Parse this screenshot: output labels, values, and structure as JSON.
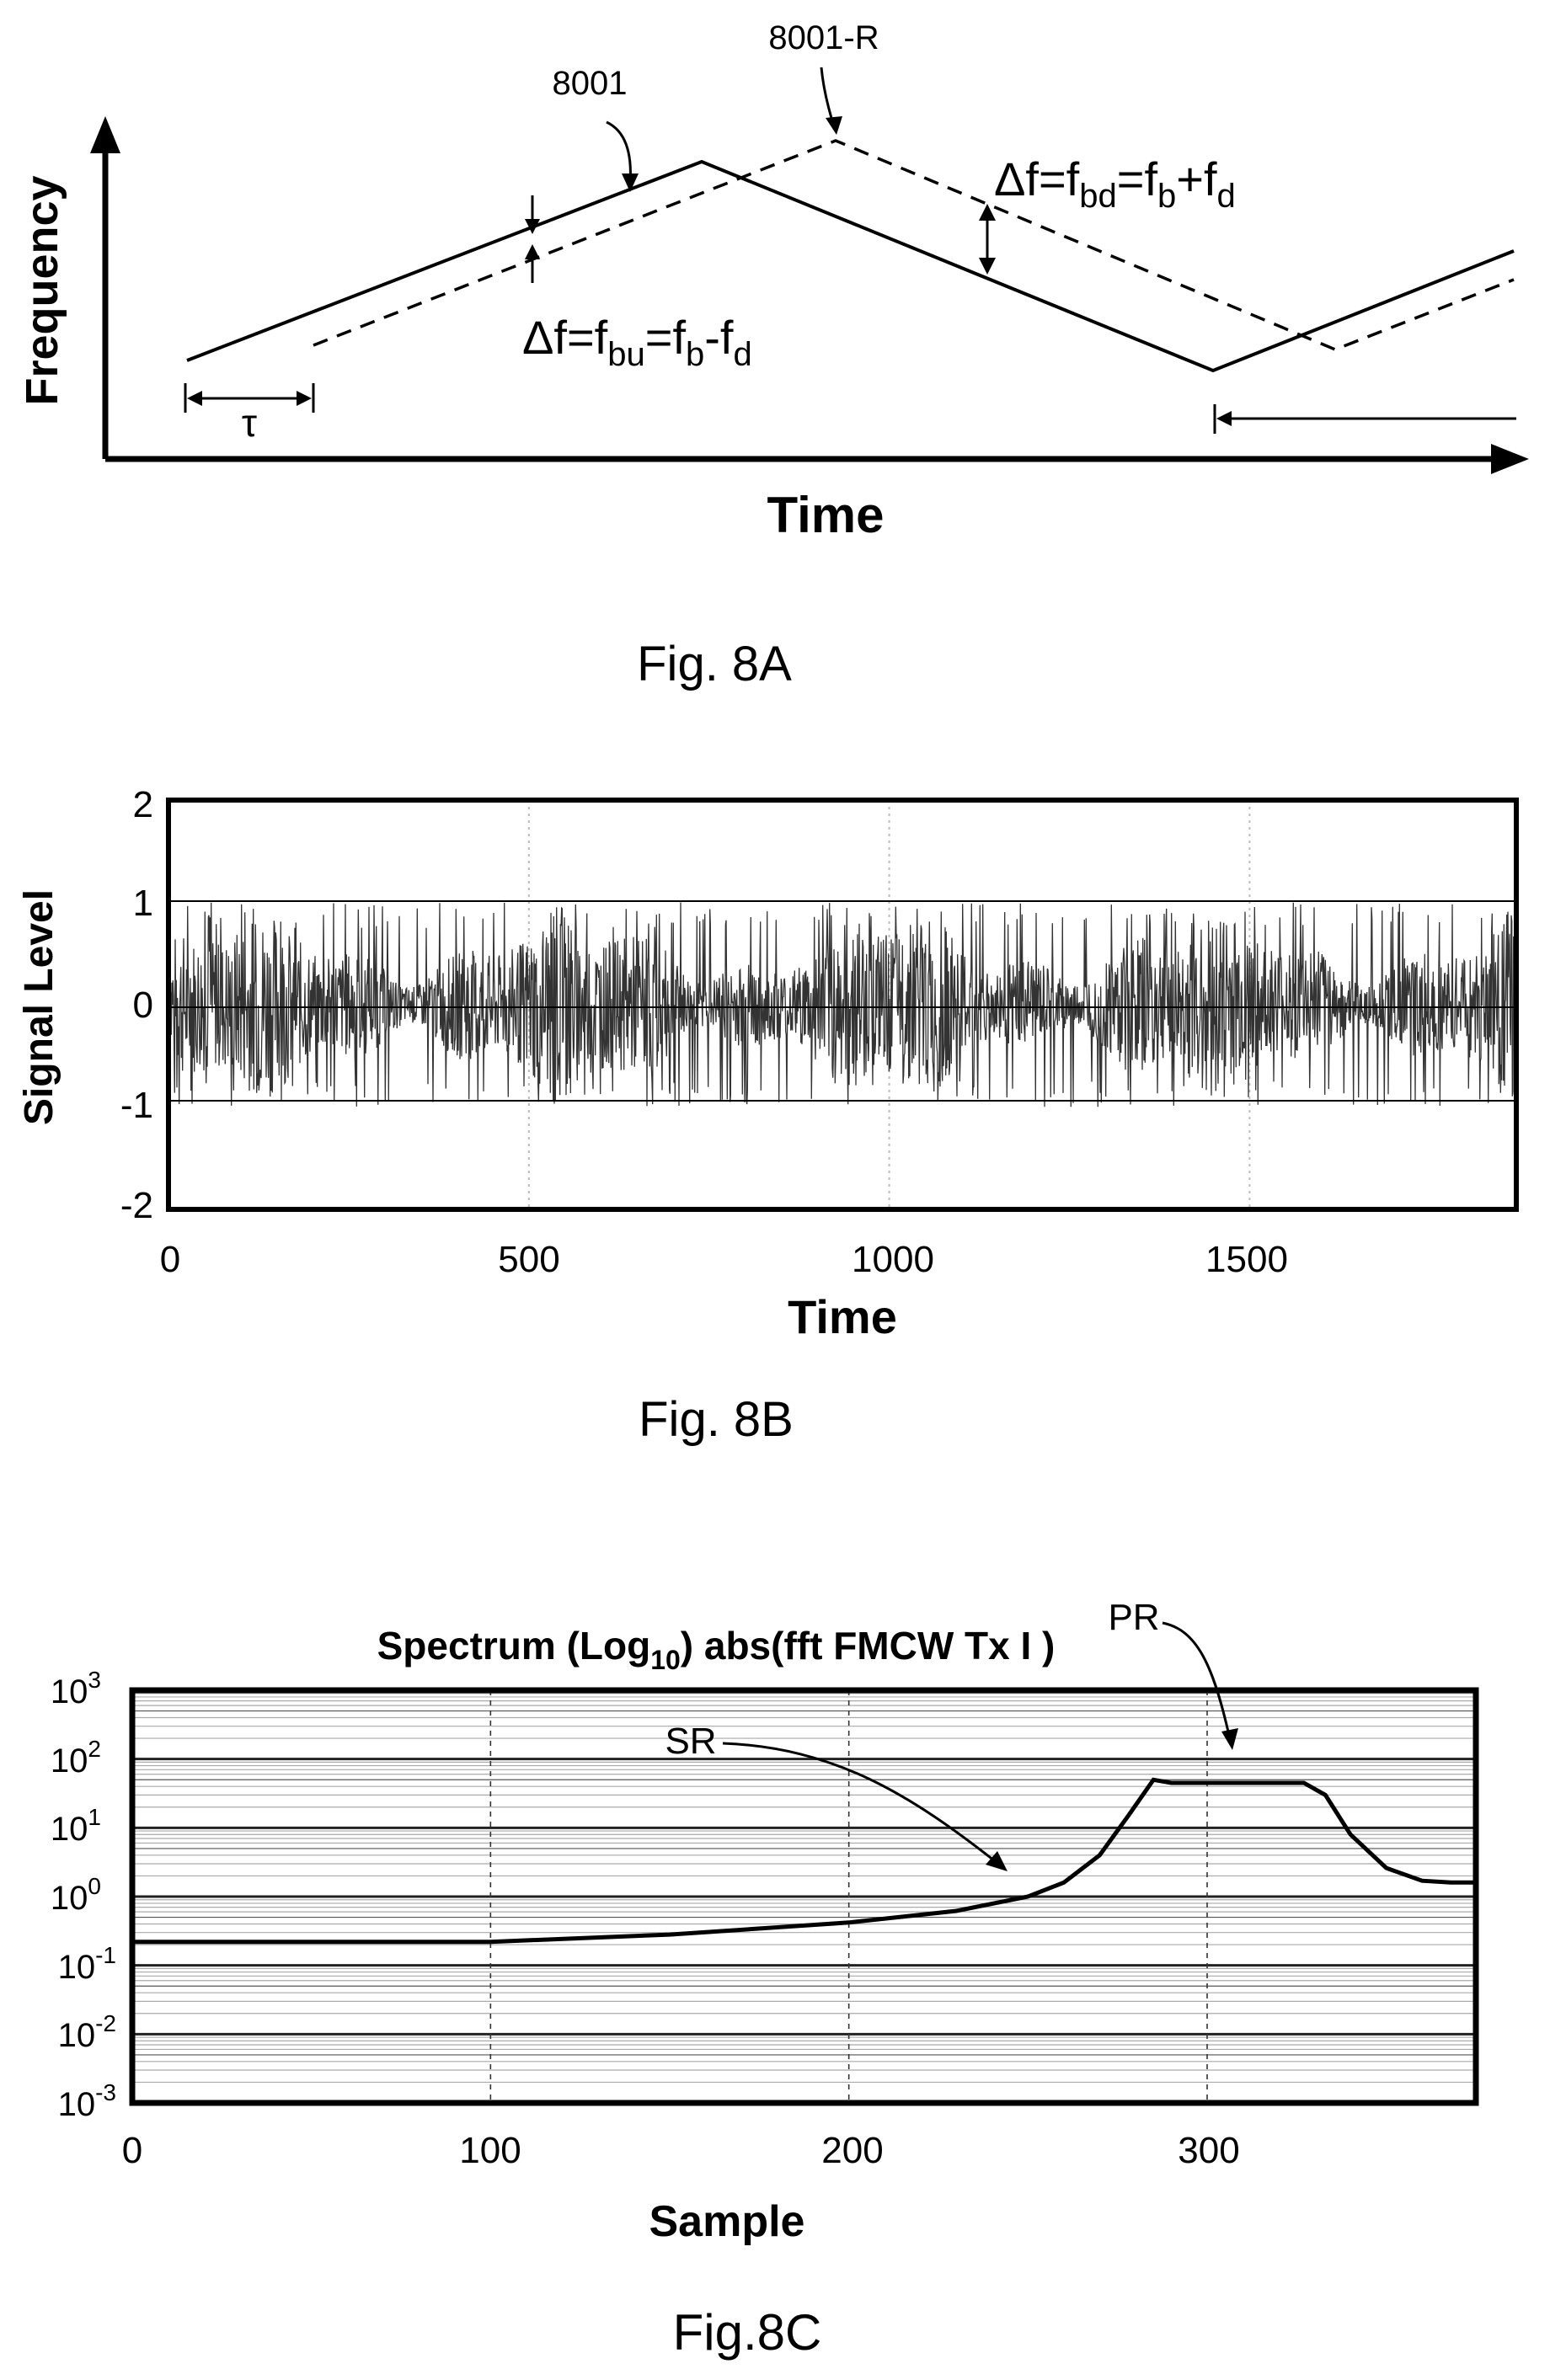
{
  "fig8a": {
    "caption": "Fig. 8A",
    "ylabel": "Frequency",
    "xlabel": "Time",
    "tx_label": "8001",
    "rx_label": "8001-R",
    "tau": "τ",
    "up_eq": {
      "lead": "Δf=f",
      "s1": "bu",
      "mid": "=f",
      "s2": "b",
      "mid2": "-f",
      "s3": "d"
    },
    "down_eq": {
      "lead": "Δf=f",
      "s1": "bd",
      "mid": "=f",
      "s2": "b",
      "mid2": "+f",
      "s3": "d"
    }
  },
  "fig8b": {
    "caption": "Fig. 8B",
    "ylabel": "Signal Level",
    "xlabel": "Time",
    "yticks": [
      "2",
      "1",
      "0",
      "-1",
      "-2"
    ],
    "xticks": [
      "0",
      "500",
      "1000",
      "1500"
    ]
  },
  "fig8c": {
    "caption": "Fig.8C",
    "title": {
      "pre": "Spectrum (Log",
      "sub": "10",
      "post": ") abs(fft FMCW Tx I )"
    },
    "xlabel": "Sample",
    "yticks": [
      {
        "base": "10",
        "exp": "3"
      },
      {
        "base": "10",
        "exp": "2"
      },
      {
        "base": "10",
        "exp": "1"
      },
      {
        "base": "10",
        "exp": "0"
      },
      {
        "base": "10",
        "exp": "-1"
      },
      {
        "base": "10",
        "exp": "-2"
      },
      {
        "base": "10",
        "exp": "-3"
      }
    ],
    "xticks": [
      "0",
      "100",
      "200",
      "300"
    ],
    "annotations": {
      "sr": "SR",
      "pr": "PR"
    }
  },
  "chart_data": [
    {
      "type": "line",
      "series": [
        {
          "name": "8001",
          "x": [
            0,
            5,
            7,
            10
          ],
          "y": [
            0.15,
            0.85,
            0.15,
            0.55
          ]
        },
        {
          "name": "8001-R",
          "x": [
            1,
            6,
            8,
            10
          ],
          "y": [
            0.15,
            0.85,
            0.15,
            0.35
          ]
        }
      ],
      "xlabel": "Time",
      "ylabel": "Frequency"
    },
    {
      "type": "line",
      "xlabel": "Time",
      "ylabel": "Signal Level",
      "xlim": [
        0,
        1870
      ],
      "ylim": [
        -2,
        2
      ],
      "grid": true,
      "series": [
        {
          "envelope_max": 1,
          "envelope_min": -1,
          "x_range": [
            0,
            1870
          ]
        }
      ]
    },
    {
      "type": "line",
      "title": "Spectrum (Log10) abs(fft FMCW Tx I )",
      "xlabel": "Sample",
      "xlim": [
        0,
        375
      ],
      "ylim": [
        0.001,
        1000
      ],
      "y_scale": "log",
      "grid": true,
      "series": [
        {
          "x": [
            0,
            50,
            100,
            150,
            200,
            230,
            250,
            260,
            270,
            278,
            285,
            290,
            300,
            310,
            320,
            327,
            333,
            340,
            350,
            360,
            368,
            375
          ],
          "y": [
            0.22,
            0.22,
            0.22,
            0.28,
            0.42,
            0.62,
            1.0,
            1.6,
            4.0,
            15,
            50,
            45,
            45,
            45,
            45,
            45,
            30,
            8,
            2.6,
            1.7,
            1.6,
            1.6
          ]
        }
      ]
    }
  ]
}
